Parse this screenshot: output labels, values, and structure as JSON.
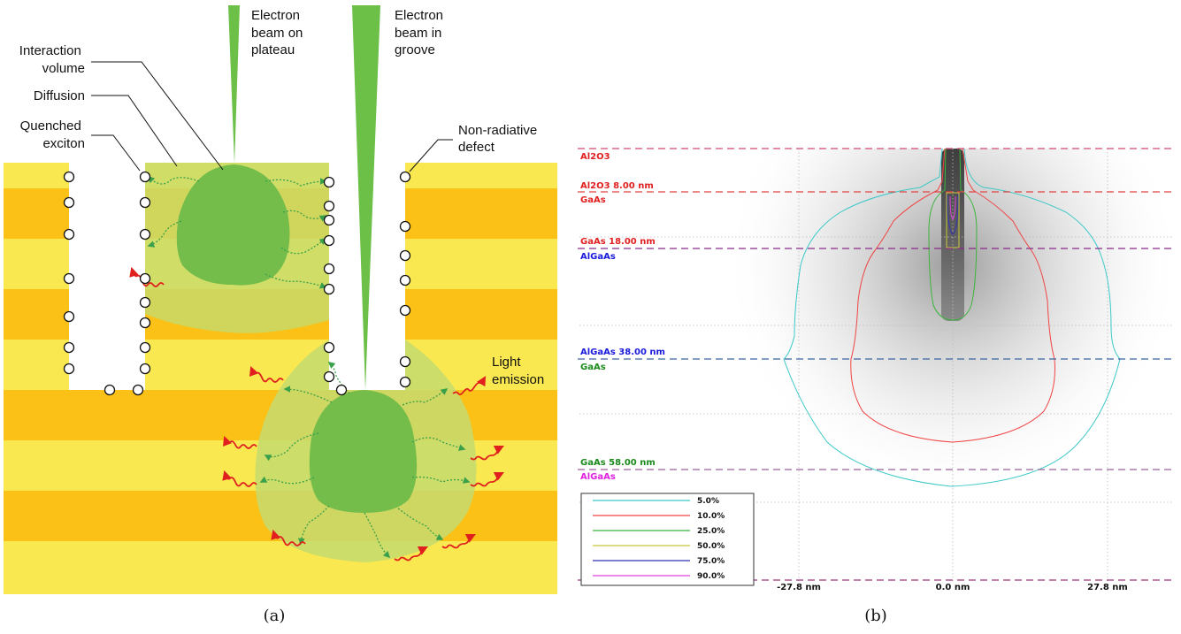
{
  "panel_a": {
    "labels": {
      "beam_plateau": [
        "Electron",
        "beam on",
        "plateau"
      ],
      "beam_groove": [
        "Electron",
        "beam in",
        "groove"
      ],
      "interaction_volume": [
        "Interaction",
        "volume"
      ],
      "diffusion": "Diffusion",
      "quenched_exciton": [
        "Quenched",
        "exciton"
      ],
      "non_radiative_defect": [
        "Non-radiative",
        "defect"
      ],
      "light_emission": [
        "Light",
        "emission"
      ]
    },
    "caption": "(a)",
    "colors": {
      "light_layer": "#f9e84f",
      "dark_layer": "#fbc117",
      "beam": "#6cbf47",
      "interaction": "#74bd4a",
      "diffusion": "#c5db6e",
      "photon": "#e0201e"
    }
  },
  "panel_b": {
    "caption": "(b)",
    "layers": [
      {
        "name": "Al2O3",
        "top_label": "Al2O3",
        "bottom_label": "Al2O3 8.00 nm",
        "top_color": "#e02020",
        "bottom_color": "#e02020",
        "top_nm": 0,
        "bottom_nm": 8
      },
      {
        "name": "GaAs",
        "top_label": "GaAs",
        "bottom_label": "GaAs 18.00 nm",
        "top_color": "#e02020",
        "bottom_color": "#e02020",
        "top_nm": 8,
        "bottom_nm": 18
      },
      {
        "name": "AlGaAs",
        "top_label": "AlGaAs",
        "bottom_label": "AlGaAs 38.00 nm",
        "top_color": "#1a1adc",
        "bottom_color": "#1a1adc",
        "top_nm": 18,
        "bottom_nm": 38
      },
      {
        "name": "GaAs",
        "top_label": "GaAs",
        "bottom_label": "GaAs 58.00 nm",
        "top_color": "#1a8a1a",
        "bottom_color": "#1a8a1a",
        "top_nm": 38,
        "bottom_nm": 58
      },
      {
        "name": "AlGaAs",
        "top_label": "AlGaAs",
        "top_color": "#e020e0",
        "top_nm": 58
      }
    ],
    "x_ticks": [
      "-27.8 nm",
      "0.0 nm",
      "27.8 nm"
    ],
    "legend": [
      {
        "label": "5.0%",
        "color": "#3cc8c8"
      },
      {
        "label": "10.0%",
        "color": "#f04444"
      },
      {
        "label": "25.0%",
        "color": "#3cb43c"
      },
      {
        "label": "50.0%",
        "color": "#c8c83c"
      },
      {
        "label": "75.0%",
        "color": "#3232b4"
      },
      {
        "label": "90.0%",
        "color": "#e040e0"
      }
    ]
  }
}
